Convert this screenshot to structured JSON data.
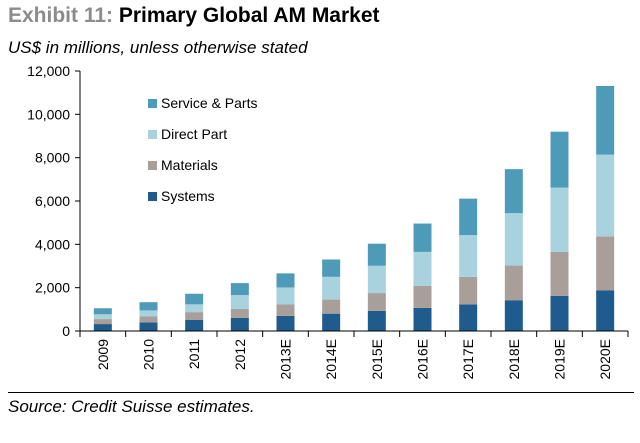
{
  "header": {
    "exhibit": "Exhibit 11:",
    "title": "Primary Global AM Market",
    "subtitle": "US$ in millions, unless otherwise stated"
  },
  "footer": {
    "source": "Source: Credit Suisse estimates."
  },
  "chart_data": {
    "type": "bar",
    "stacked": true,
    "categories": [
      "2009",
      "2010",
      "2011",
      "2012",
      "2013E",
      "2014E",
      "2015E",
      "2016E",
      "2017E",
      "2018E",
      "2019E",
      "2020E"
    ],
    "series": [
      {
        "name": "Systems",
        "color": "#1f5b8c",
        "values": [
          320,
          400,
          520,
          600,
          700,
          800,
          930,
          1070,
          1230,
          1420,
          1620,
          1870
        ]
      },
      {
        "name": "Materials",
        "color": "#a89f9b",
        "values": [
          230,
          270,
          350,
          420,
          530,
          650,
          820,
          1020,
          1270,
          1600,
          2030,
          2500
        ]
      },
      {
        "name": "Direct Part",
        "color": "#a7d2de",
        "values": [
          220,
          280,
          360,
          640,
          780,
          1050,
          1260,
          1560,
          1930,
          2420,
          2970,
          3770
        ]
      },
      {
        "name": "Service & Parts",
        "color": "#4e9bb9",
        "values": [
          280,
          380,
          490,
          550,
          650,
          800,
          1020,
          1310,
          1680,
          2030,
          2580,
          3170
        ]
      }
    ],
    "ylim": [
      0,
      12000
    ],
    "yticks": [
      "0",
      "2,000",
      "4,000",
      "6,000",
      "8,000",
      "10,000",
      "12,000"
    ],
    "grid": false,
    "legend": {
      "placement": "top-left",
      "order": [
        "Service & Parts",
        "Direct Part",
        "Materials",
        "Systems"
      ]
    }
  }
}
